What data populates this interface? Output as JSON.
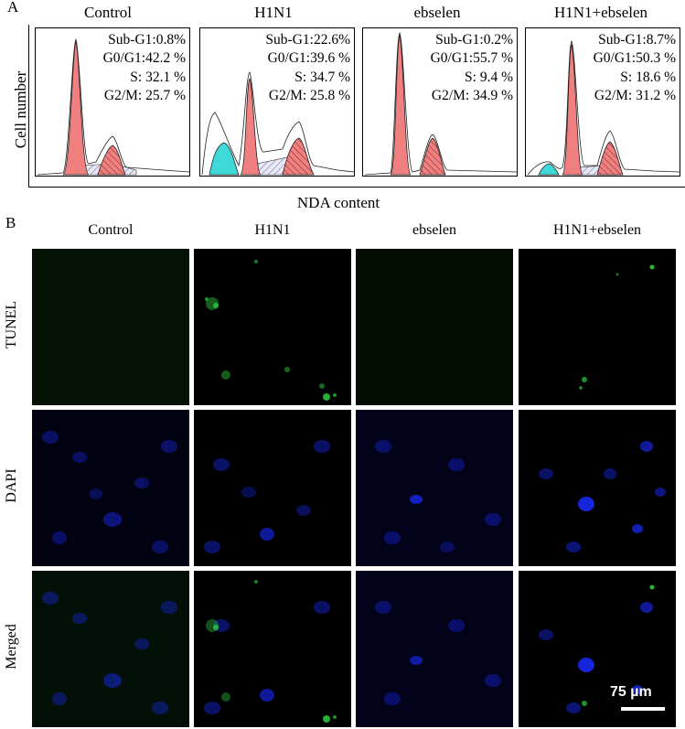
{
  "panel_a": {
    "letter": "A",
    "y_axis_label": "Cell number",
    "x_axis_label": "NDA content",
    "histograms": [
      {
        "title": "Control",
        "sub_g1": "Sub-G1:0.8%",
        "g0_g1": "G0/G1:42.2 %",
        "s": "S: 32.1 %",
        "g2_m": "G2/M: 25.7 %"
      },
      {
        "title": "H1N1",
        "sub_g1": "Sub-G1:22.6%",
        "g0_g1": "G0/G1:39.6 %",
        "s": "S: 34.7 %",
        "g2_m": "G2/M: 25.8 %"
      },
      {
        "title": "ebselen",
        "sub_g1": "Sub-G1:0.2%",
        "g0_g1": "G0/G1:55.7 %",
        "s": "S: 9.4 %",
        "g2_m": "G2/M: 34.9 %"
      },
      {
        "title": "H1N1+ebselen",
        "sub_g1": "Sub-G1:8.7%",
        "g0_g1": "G0/G1:50.3 %",
        "s": "S: 18.6 %",
        "g2_m": "G2/M: 31.2 %"
      }
    ]
  },
  "panel_b": {
    "letter": "B",
    "columns": [
      "Control",
      "H1N1",
      "ebselen",
      "H1N1+ebselen"
    ],
    "rows": [
      "TUNEL",
      "DAPI",
      "Merged"
    ],
    "scale_bar": "75 µm"
  },
  "colors": {
    "g0g1_peak": "#f08080",
    "sub_g1": "#3fd9d9",
    "tunel_signal": "#2ecc40",
    "dapi_signal": "#1a2cff"
  }
}
